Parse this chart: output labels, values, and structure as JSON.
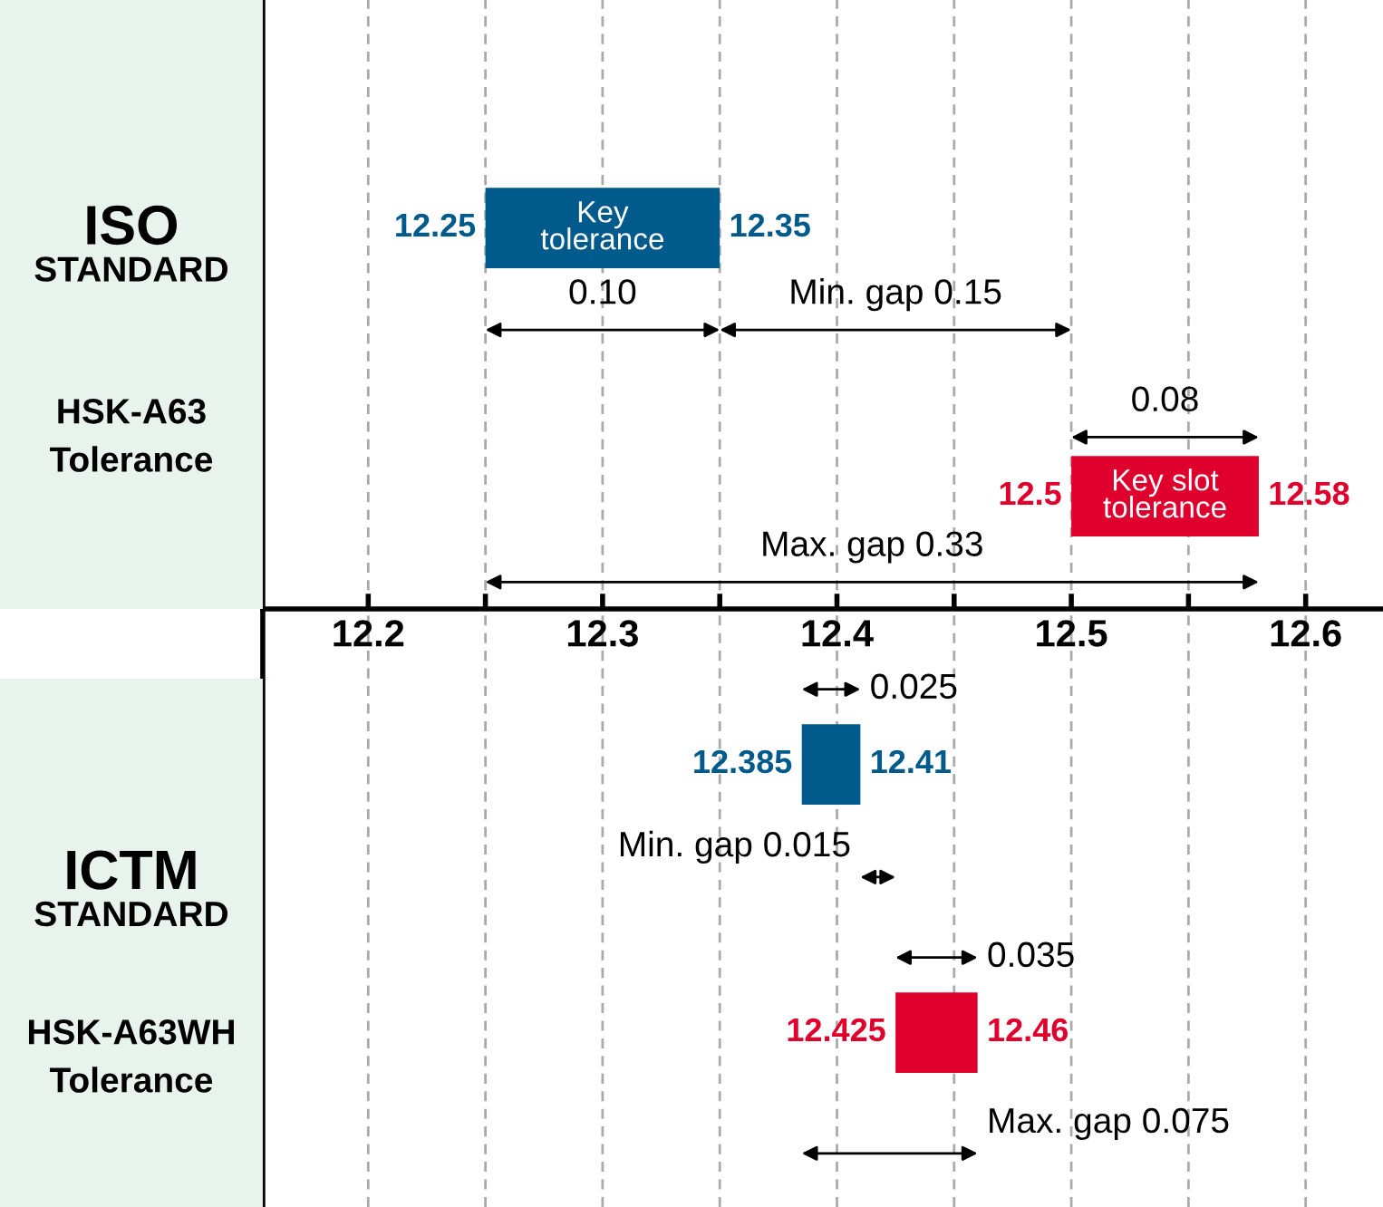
{
  "chart_data": {
    "type": "bar",
    "orientation": "horizontal",
    "title": "ISO\nSTANDARD",
    "subtitle": "HSK-A63\nTolerance",
    "categories": [
      "Key\ntolerance",
      "Key slot\ntolerance",
      null,
      null
    ],
    "base": [
      12.25,
      12.5,
      12.385,
      12.425
    ],
    "values": [
      0.1,
      0.08,
      0.025,
      0.035
    ],
    "colors": [
      "#005a8c",
      "#e0002d",
      "#005a8c",
      "#e0002d"
    ],
    "xlim": [
      12.155,
      12.633
    ],
    "xticks": [
      12.2,
      {
        "value": 12.25,
        "label": null
      },
      12.3,
      {
        "value": 12.35,
        "label": null
      },
      12.4,
      {
        "value": 12.45,
        "label": null
      },
      12.5,
      {
        "value": 12.55,
        "label": null
      },
      12.6
    ],
    "grid": "x",
    "annotations": [
      {
        "text": "12.25",
        "x": 12.25,
        "y": "Key\ntolerance"
      },
      {
        "text": "12.35",
        "x": 12.35,
        "y": "Key\ntolerance"
      },
      {
        "text": "12.5",
        "x": 12.5,
        "y": "Key slot\ntolerance"
      },
      {
        "text": "12.58",
        "x": 12.58,
        "y": "Key slot\ntolerance"
      },
      "12.385",
      "12.41",
      "12.425",
      "12.46",
      "0.10",
      "Min. gap 0.15",
      "0.08",
      "Max. gap 0.33",
      "0.025",
      "Min. gap 0.015",
      "0.035",
      "Max. gap 0.075",
      "ICTM\nSTANDARD",
      "HSK-A63WH\nTolerance"
    ]
  }
}
